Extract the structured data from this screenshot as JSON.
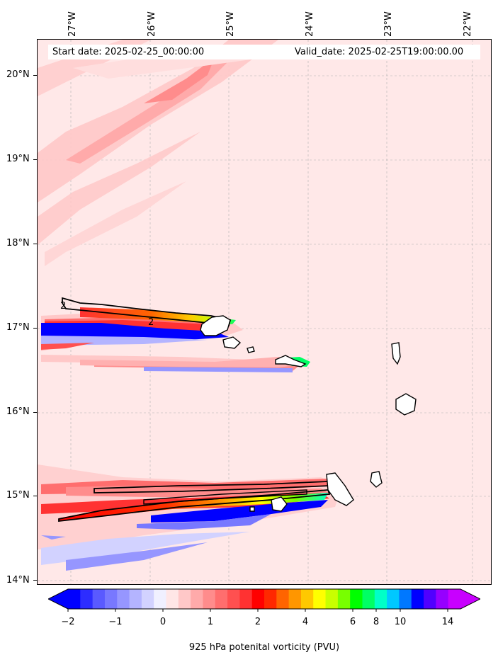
{
  "header": {
    "start_date": "Start date: 2025-02-25_00:00:00",
    "valid_date": "Valid_date: 2025-02-25T19:00:00.00"
  },
  "longitude_labels": [
    "27°W",
    "26°W",
    "25°W",
    "24°W",
    "23°W",
    "22°W"
  ],
  "latitude_labels": [
    "20°N",
    "19°N",
    "18°N",
    "17°N",
    "16°N",
    "15°N",
    "14°N"
  ],
  "colorbar": {
    "title": "925 hPa potenital vorticity (PVU)",
    "tick_labels": [
      "−2",
      "−1",
      "0",
      "1",
      "2",
      "4",
      "6",
      "8",
      "10",
      "14"
    ],
    "colors": [
      "#0000ff",
      "#2d2dff",
      "#5a5aff",
      "#7878ff",
      "#9696ff",
      "#b4b4ff",
      "#d2d2ff",
      "#f0f0ff",
      "#ffe6e6",
      "#ffc8c8",
      "#ffaaaa",
      "#ff8c8c",
      "#ff6e6e",
      "#ff5050",
      "#ff3232",
      "#ff0000",
      "#ff2800",
      "#ff6400",
      "#ff9600",
      "#ffc800",
      "#ffff00",
      "#c8ff00",
      "#78ff00",
      "#00ff00",
      "#00ff64",
      "#00ffc8",
      "#00c8ff",
      "#0078ff",
      "#0000ff",
      "#5000ff",
      "#9600ff",
      "#c800ff"
    ],
    "extend_low": "#0000ff",
    "extend_high": "#c800ff"
  },
  "map": {
    "background": "#ffe8e8",
    "contour_label": "2"
  }
}
